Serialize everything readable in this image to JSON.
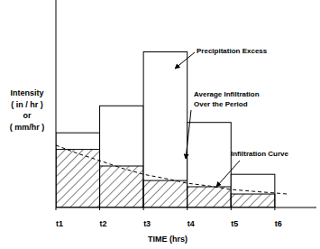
{
  "chart_data": {
    "type": "bar",
    "x_label": "TIME (hrs)",
    "y_label": [
      "Intensity",
      "( in / hr )",
      "or",
      "( mm/hr )"
    ],
    "bins": [
      1,
      2,
      3,
      4,
      5,
      6
    ],
    "values": [
      3.6,
      4.9,
      7.5,
      4.1,
      1.6
    ],
    "infiltration_values": [
      2.8,
      2.0,
      1.3,
      1.0,
      0.65
    ],
    "infiltration_curve": {
      "x": [
        1,
        1.5,
        2,
        2.5,
        3,
        3.5,
        4,
        4.5,
        5,
        5.5,
        6,
        6.3
      ],
      "y": [
        3.0,
        2.6,
        2.26,
        1.9,
        1.6,
        1.4,
        1.17,
        1.04,
        0.87,
        0.78,
        0.7,
        0.65
      ]
    },
    "xlim": [
      1,
      6.95
    ],
    "ylim": [
      0,
      10
    ],
    "xticks": [
      {
        "value": 1,
        "label": "t1"
      },
      {
        "value": 2,
        "label": "t2"
      },
      {
        "value": 3,
        "label": "t3"
      },
      {
        "value": 4,
        "label": "t4"
      },
      {
        "value": 5,
        "label": "t5"
      },
      {
        "value": 6,
        "label": "t6"
      }
    ],
    "tick_labels": "x",
    "grid": false,
    "color": "#ffffff",
    "annotations": [
      {
        "lines": [
          "Precipitation Excess"
        ]
      },
      {
        "lines": [
          "Average Infiltration",
          "Over the Period"
        ]
      },
      {
        "lines": [
          "Infiltration Curve"
        ]
      }
    ]
  }
}
